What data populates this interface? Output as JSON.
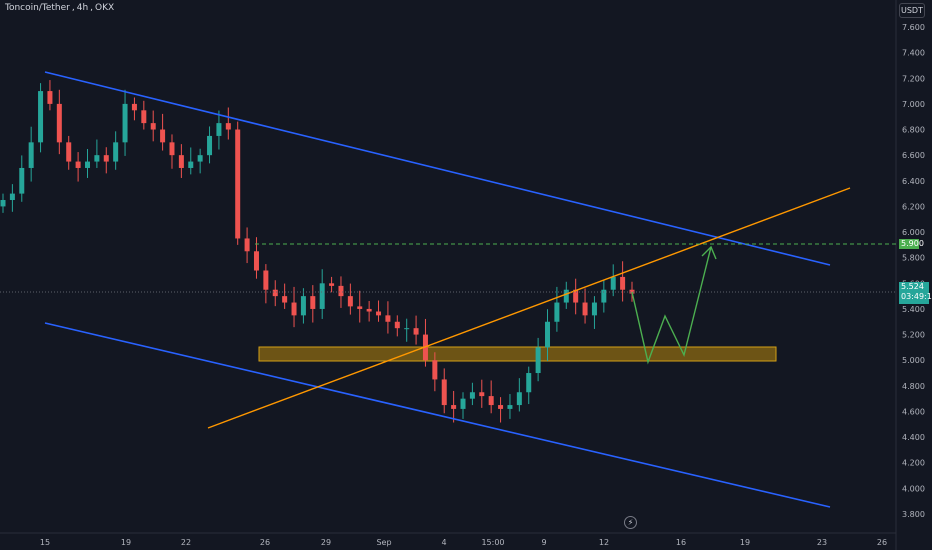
{
  "header": {
    "symbol": "Toncoin/Tether",
    "interval": "4h",
    "exchange": "OKX",
    "currency_button": "USDT"
  },
  "price_axis": {
    "ticks": [
      "7.600",
      "7.400",
      "7.200",
      "7.000",
      "6.800",
      "6.600",
      "6.400",
      "6.200",
      "6.000",
      "5.800",
      "5.600",
      "5.400",
      "5.200",
      "5.000",
      "4.800",
      "4.600",
      "4.400",
      "4.200",
      "4.000",
      "3.800"
    ],
    "target_label": "5.900",
    "current_price": "5.524",
    "countdown": "03:49:13"
  },
  "time_axis": {
    "ticks": [
      "15",
      "19",
      "22",
      "26",
      "29",
      "Sep",
      "4",
      "15:00",
      "9",
      "12",
      "16",
      "19",
      "23",
      "26"
    ]
  },
  "icons": {
    "replay": "lightning-icon"
  },
  "colors": {
    "background": "#131722",
    "up": "#26a69a",
    "down": "#ef5350",
    "channel": "#2962ff",
    "trendline": "#ff9800",
    "zone": "#b8860b",
    "projection": "#4caf50",
    "target": "#4caf50"
  },
  "chart_data": {
    "type": "candlestick",
    "title": "",
    "y_range": [
      3.75,
      7.7
    ],
    "grid": false,
    "x_axis_labels": [
      "15",
      "19",
      "22",
      "26",
      "29",
      "Sep",
      "4",
      "15:00",
      "9",
      "12",
      "16",
      "19",
      "23",
      "26"
    ],
    "current_price": 5.524,
    "target_price": 5.9,
    "support_zone": [
      5.0,
      5.1
    ],
    "descending_channel": {
      "upper": [
        {
          "x": "Aug 15",
          "y": 7.25
        },
        {
          "x": "Sep 21",
          "y": 5.75
        }
      ],
      "lower": [
        {
          "x": "Aug 15",
          "y": 5.28
        },
        {
          "x": "Sep 21",
          "y": 3.85
        }
      ]
    },
    "ascending_trendline": [
      {
        "x": "Aug 23",
        "y": 4.48
      },
      {
        "x": "Sep 22",
        "y": 6.33
      }
    ],
    "projection_path": [
      5.52,
      5.35,
      4.97,
      5.33,
      5.04,
      5.88
    ],
    "close_path": [
      6.25,
      6.3,
      6.5,
      6.7,
      7.1,
      7.0,
      6.7,
      6.55,
      6.5,
      6.55,
      6.6,
      6.55,
      6.7,
      7.0,
      6.95,
      6.85,
      6.8,
      6.7,
      6.6,
      6.5,
      6.55,
      6.6,
      6.75,
      6.85,
      6.8,
      5.95,
      5.85,
      5.7,
      5.55,
      5.5,
      5.45,
      5.35,
      5.5,
      5.4,
      5.6,
      5.58,
      5.5,
      5.42,
      5.4,
      5.38,
      5.35,
      5.3,
      5.25,
      5.25,
      5.2,
      5.0,
      4.85,
      4.65,
      4.62,
      4.7,
      4.75,
      4.72,
      4.65,
      4.62,
      4.65,
      4.75,
      4.9,
      5.1,
      5.3,
      5.45,
      5.55,
      5.45,
      5.35,
      5.45,
      5.55,
      5.65,
      5.55,
      5.52
    ]
  }
}
